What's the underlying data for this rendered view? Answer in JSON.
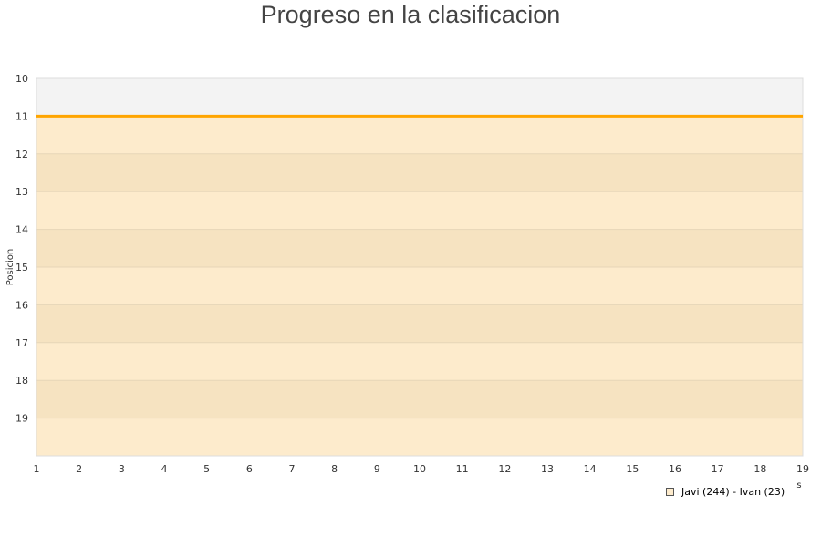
{
  "chart_data": {
    "type": "area",
    "title": "Progreso en la clasificacion",
    "ylabel": "Posicion",
    "xlabel": "s",
    "x": [
      1,
      2,
      3,
      4,
      5,
      6,
      7,
      8,
      9,
      10,
      11,
      12,
      13,
      14,
      15,
      16,
      17,
      18,
      19
    ],
    "ylim": [
      10,
      20
    ],
    "y_inverted": true,
    "y_ticks": [
      10,
      11,
      12,
      13,
      14,
      15,
      16,
      17,
      18,
      19
    ],
    "series": [
      {
        "name": "Javi (244) - Ivan (23)",
        "values": [
          11,
          11,
          11,
          11,
          11,
          11,
          11,
          11,
          11,
          11,
          11,
          11,
          11,
          11,
          11,
          11,
          11,
          11,
          11
        ],
        "color": "#ffa500",
        "fill": "#fdebcc"
      }
    ],
    "band_color": "#f5e2c0",
    "background": "#f3f3f3",
    "grid": true,
    "legend_position": "bottom-right"
  }
}
